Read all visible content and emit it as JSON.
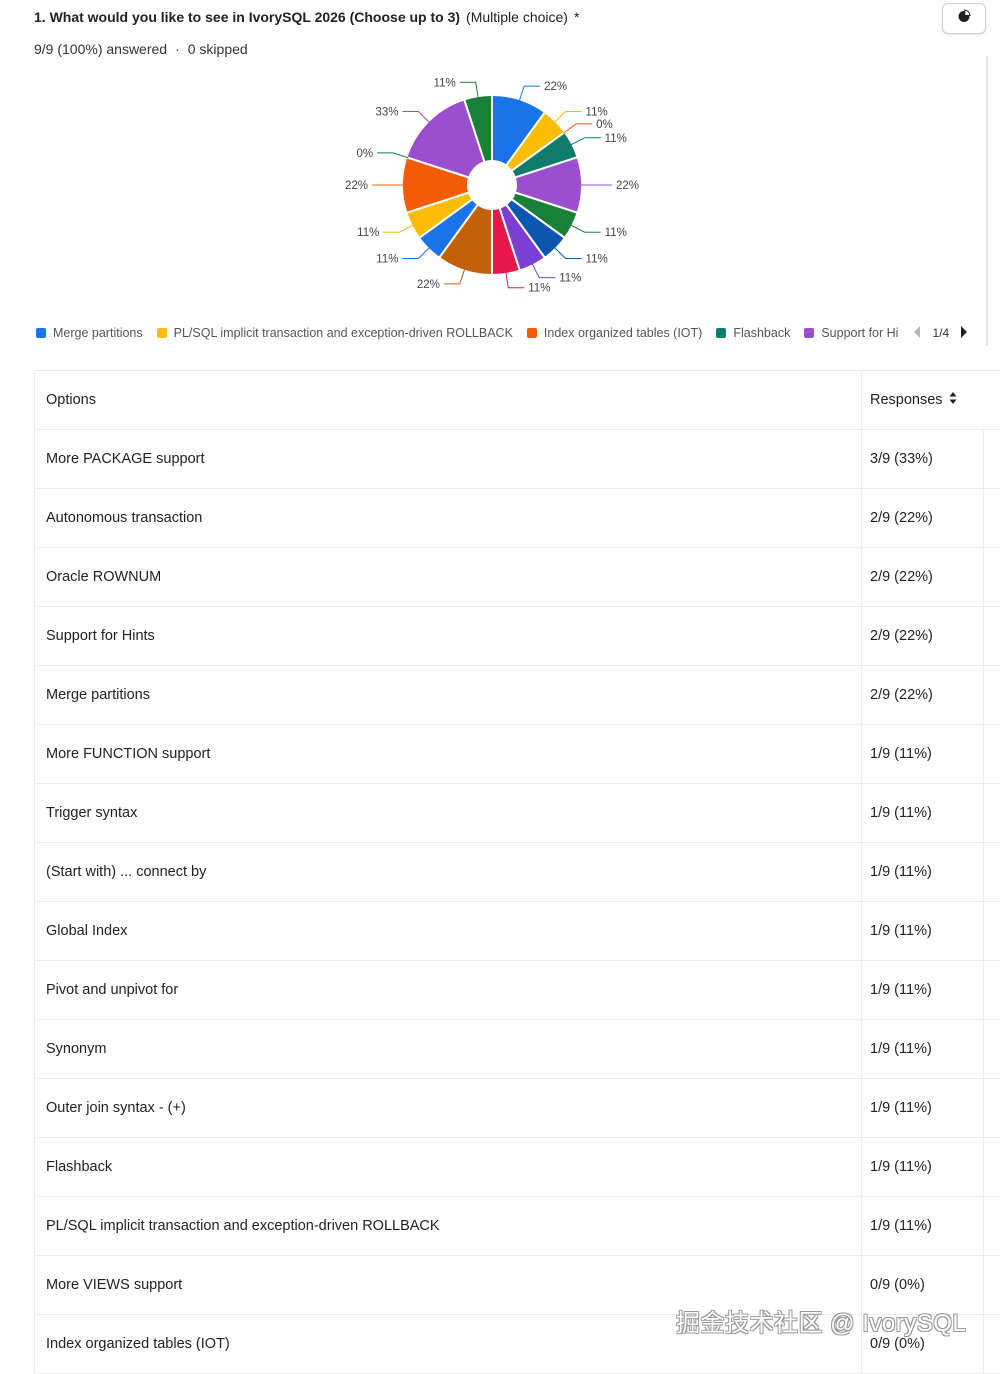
{
  "question": {
    "title": "1. What would you like to see in IvorySQL 2026 (Choose up to 3)",
    "type": "(Multiple choice)",
    "required_mark": "*",
    "answered": "9/9 (100%) answered",
    "separator": "·",
    "skipped": "0 skipped"
  },
  "toolbar": {
    "chart_toggle_icon": "pie-chart-icon"
  },
  "chart_data": {
    "type": "pie",
    "donut": true,
    "slices": [
      {
        "label": "Merge partitions",
        "value": 22,
        "color": "#1a73e8"
      },
      {
        "label": "PL/SQL implicit transaction and exception-driven ROLLBACK",
        "value": 11,
        "color": "#fbbc04"
      },
      {
        "label": "Index organized tables (IOT)",
        "value": 0,
        "color": "#f25c05"
      },
      {
        "label": "Flashback",
        "value": 11,
        "color": "#0f7b6c"
      },
      {
        "label": "Support for Hints",
        "value": 22,
        "color": "#9b4fcf"
      },
      {
        "label": "",
        "value": 11,
        "color": "#188038"
      },
      {
        "label": "",
        "value": 11,
        "color": "#0b57b0"
      },
      {
        "label": "",
        "value": 11,
        "color": "#7b3fd4"
      },
      {
        "label": "",
        "value": 11,
        "color": "#e8174a"
      },
      {
        "label": "",
        "value": 22,
        "color": "#c5600a"
      },
      {
        "label": "",
        "value": 11,
        "color": "#1a73e8"
      },
      {
        "label": "",
        "value": 11,
        "color": "#fbbc04"
      },
      {
        "label": "",
        "value": 22,
        "color": "#f25c05"
      },
      {
        "label": "",
        "value": 0,
        "color": "#0f7b6c"
      },
      {
        "label": "",
        "value": 33,
        "color": "#9b4fcf"
      },
      {
        "label": "",
        "value": 11,
        "color": "#188038"
      }
    ],
    "value_labels": [
      "22%",
      "11%",
      "0%",
      "11%",
      "22%",
      "11%",
      "11%",
      "11%",
      "11%",
      "22%",
      "11%",
      "11%",
      "22%",
      "0%",
      "33%",
      "11%"
    ],
    "legend": {
      "items": [
        {
          "label": "Merge partitions",
          "color": "#1a73e8"
        },
        {
          "label": "PL/SQL implicit transaction and exception-driven ROLLBACK",
          "color": "#fbbc04"
        },
        {
          "label": "Index organized tables (IOT)",
          "color": "#f25c05"
        },
        {
          "label": "Flashback",
          "color": "#0f7b6c"
        },
        {
          "label": "Support for Hi",
          "color": "#9b4fcf"
        }
      ],
      "page": "1/4",
      "placement": "bottom"
    }
  },
  "table": {
    "header": {
      "option": "Options",
      "responses": "Responses"
    },
    "rows": [
      {
        "option": "More PACKAGE support",
        "response": "3/9 (33%)"
      },
      {
        "option": "Autonomous transaction",
        "response": "2/9 (22%)"
      },
      {
        "option": "Oracle ROWNUM",
        "response": "2/9 (22%)"
      },
      {
        "option": "Support for Hints",
        "response": "2/9 (22%)"
      },
      {
        "option": "Merge partitions",
        "response": "2/9 (22%)"
      },
      {
        "option": "More FUNCTION support",
        "response": "1/9 (11%)"
      },
      {
        "option": "Trigger syntax",
        "response": "1/9 (11%)"
      },
      {
        "option": "(Start with) ... connect by",
        "response": "1/9 (11%)"
      },
      {
        "option": "Global Index",
        "response": "1/9 (11%)"
      },
      {
        "option": "Pivot and unpivot for",
        "response": "1/9 (11%)"
      },
      {
        "option": "Synonym",
        "response": "1/9 (11%)"
      },
      {
        "option": "Outer join syntax - (+)",
        "response": "1/9 (11%)"
      },
      {
        "option": "Flashback",
        "response": "1/9 (11%)"
      },
      {
        "option": "PL/SQL implicit transaction and exception-driven ROLLBACK",
        "response": "1/9 (11%)"
      },
      {
        "option": "More VIEWS support",
        "response": "0/9 (0%)"
      },
      {
        "option": "Index organized tables (IOT)",
        "response": "0/9 (0%)"
      }
    ]
  },
  "watermark": "掘金技术社区 @ IvorySQL"
}
